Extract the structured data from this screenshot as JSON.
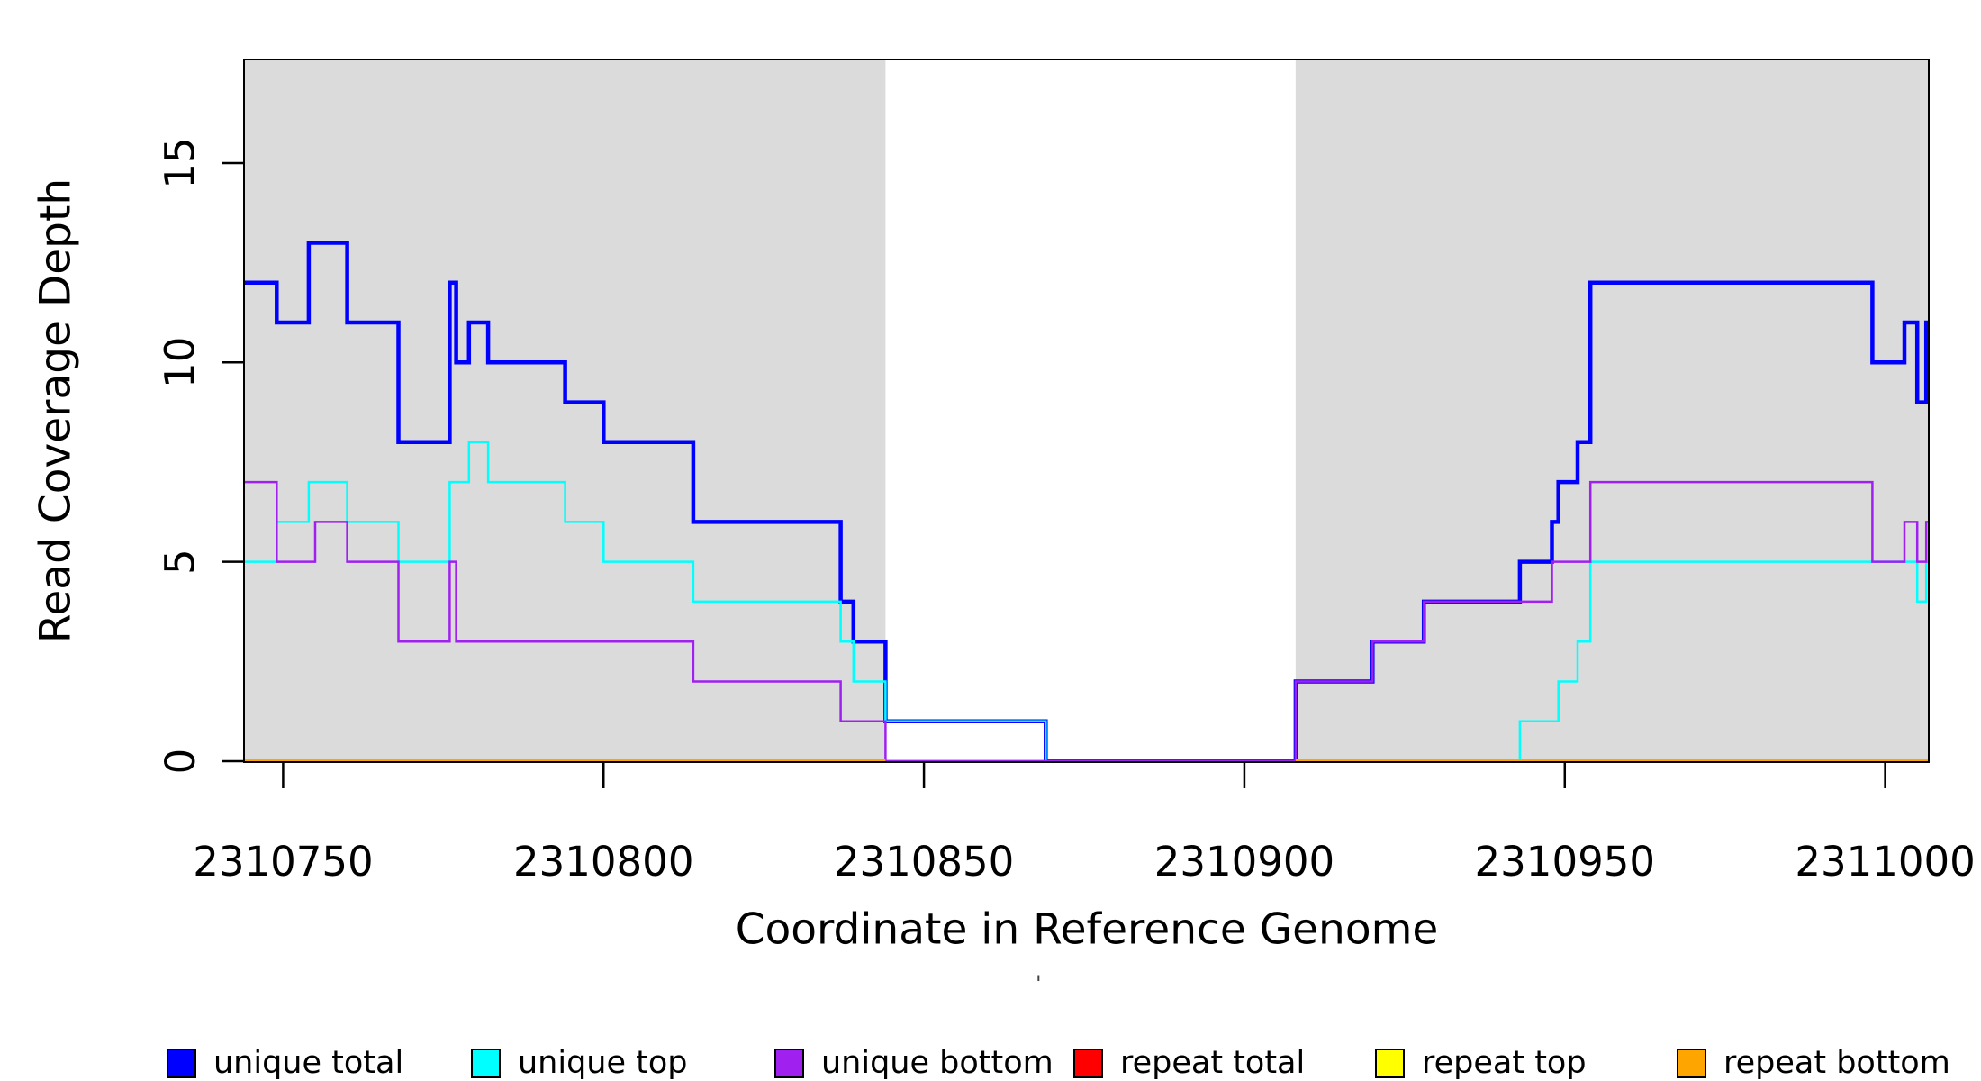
{
  "axes": {
    "x_label": "Coordinate in Reference Genome",
    "y_label": "Read Coverage Depth",
    "x_ticks": [
      {
        "label": "2310750",
        "value": 2310750
      },
      {
        "label": "2310800",
        "value": 2310800
      },
      {
        "label": "2310850",
        "value": 2310850
      },
      {
        "label": "2310900",
        "value": 2310900
      },
      {
        "label": "2310950",
        "value": 2310950
      },
      {
        "label": "2311000",
        "value": 2311000
      }
    ],
    "y_ticks": [
      {
        "label": "0",
        "value": 0
      },
      {
        "label": "5",
        "value": 5
      },
      {
        "label": "10",
        "value": 10
      },
      {
        "label": "15",
        "value": 15
      }
    ]
  },
  "legend": {
    "items": [
      {
        "id": "unique_total",
        "label": "unique total",
        "color": "#0000FF"
      },
      {
        "id": "unique_top",
        "label": "unique top",
        "color": "#00FFFF"
      },
      {
        "id": "unique_bottom",
        "label": "unique bottom",
        "color": "#A020F0"
      },
      {
        "id": "repeat_total",
        "label": "repeat total",
        "color": "#FF0000"
      },
      {
        "id": "repeat_top",
        "label": "repeat top",
        "color": "#FFFF00"
      },
      {
        "id": "repeat_bottom",
        "label": "repeat bottom",
        "color": "#FFA500"
      }
    ]
  },
  "stray_mark": "'",
  "chart_data": {
    "type": "line",
    "subtype": "step",
    "x_domain": [
      2310743.9,
      2311006.8
    ],
    "y_domain": [
      0,
      17.6
    ],
    "grid": false,
    "legend_position": "bottom",
    "shade_color": "#DBDBDB",
    "shaded_regions": [
      [
        2310743.9,
        2310844
      ],
      [
        2310908,
        2311006.8
      ]
    ],
    "draw_order": [
      "repeat_total",
      "repeat_top",
      "unique_total",
      "unique_top",
      "unique_bottom",
      "repeat_bottom"
    ],
    "series": [
      {
        "id": "unique_total",
        "name": "unique total",
        "color": "#0000FF",
        "width": 4.5,
        "segments": [
          {
            "steps": [
              [
                2310743.9,
                12
              ],
              [
                2310749,
                11
              ],
              [
                2310754,
                13
              ],
              [
                2310760,
                11
              ],
              [
                2310768,
                8
              ],
              [
                2310776,
                12
              ],
              [
                2310777,
                10
              ],
              [
                2310779,
                11
              ],
              [
                2310782,
                10
              ],
              [
                2310794,
                9
              ],
              [
                2310800,
                8
              ],
              [
                2310814,
                6
              ],
              [
                2310837,
                4
              ],
              [
                2310839,
                3
              ],
              [
                2310844,
                1
              ],
              [
                2310869,
                0
              ],
              [
                2310908,
                2
              ],
              [
                2310920,
                3
              ],
              [
                2310928,
                4
              ],
              [
                2310943,
                5
              ],
              [
                2310948,
                6
              ],
              [
                2310949,
                7
              ],
              [
                2310952,
                8
              ],
              [
                2310954,
                12
              ],
              [
                2310998,
                10
              ],
              [
                2311003,
                11
              ],
              [
                2311005,
                9
              ],
              [
                2311006.4,
                11
              ]
            ],
            "end": 2311007
          }
        ]
      },
      {
        "id": "unique_top",
        "name": "unique top",
        "color": "#00FFFF",
        "width": 2.5,
        "segments": [
          {
            "steps": [
              [
                2310743.9,
                5
              ],
              [
                2310749,
                6
              ],
              [
                2310754,
                7
              ],
              [
                2310760,
                6
              ],
              [
                2310768,
                5
              ],
              [
                2310776,
                7
              ],
              [
                2310779,
                8
              ],
              [
                2310782,
                7
              ],
              [
                2310794,
                6
              ],
              [
                2310800,
                5
              ],
              [
                2310814,
                4
              ],
              [
                2310837,
                3
              ],
              [
                2310839,
                2
              ],
              [
                2310844,
                1
              ],
              [
                2310869,
                0
              ],
              [
                2310943,
                1
              ],
              [
                2310949,
                2
              ],
              [
                2310952,
                3
              ],
              [
                2310954,
                5
              ],
              [
                2311005,
                4
              ],
              [
                2311006.4,
                5
              ]
            ],
            "end": 2311007
          }
        ]
      },
      {
        "id": "unique_bottom",
        "name": "unique bottom",
        "color": "#A020F0",
        "width": 2.5,
        "segments": [
          {
            "steps": [
              [
                2310743.9,
                7
              ],
              [
                2310749,
                5
              ],
              [
                2310755,
                6
              ],
              [
                2310760,
                5
              ],
              [
                2310768,
                3
              ],
              [
                2310776,
                5
              ],
              [
                2310777,
                3
              ],
              [
                2310814,
                2
              ],
              [
                2310837,
                1
              ],
              [
                2310844,
                0
              ],
              [
                2310908,
                2
              ],
              [
                2310920,
                3
              ],
              [
                2310928,
                4
              ],
              [
                2310948,
                5
              ],
              [
                2310954,
                7
              ],
              [
                2310998,
                5
              ],
              [
                2311003,
                6
              ],
              [
                2311005,
                5
              ],
              [
                2311006.4,
                6
              ]
            ],
            "end": 2311007
          }
        ]
      },
      {
        "id": "repeat_total",
        "name": "repeat total",
        "color": "#FF0000",
        "width": 2.5,
        "segments": [
          {
            "steps": [
              [
                2310743.9,
                0
              ]
            ],
            "end": 2311007
          }
        ]
      },
      {
        "id": "repeat_top",
        "name": "repeat top",
        "color": "#FFFF00",
        "width": 2.5,
        "segments": [
          {
            "steps": [
              [
                2310743.9,
                0
              ]
            ],
            "end": 2310844
          },
          {
            "steps": [
              [
                2310908,
                0
              ]
            ],
            "end": 2311007
          }
        ]
      },
      {
        "id": "repeat_bottom",
        "name": "repeat bottom",
        "color": "#FFA500",
        "width": 4,
        "segments": [
          {
            "steps": [
              [
                2310743.9,
                0
              ]
            ],
            "end": 2310844
          },
          {
            "steps": [
              [
                2310908,
                0
              ]
            ],
            "end": 2311007
          }
        ]
      }
    ]
  }
}
